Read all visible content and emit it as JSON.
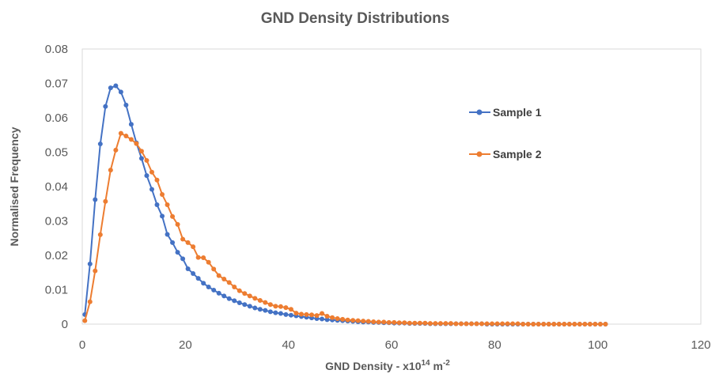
{
  "chart_data": {
    "type": "line",
    "title": "GND Density Distributions",
    "xlabel": "GND Density - x10",
    "xlabel_sup": "14",
    "xlabel_unit": " m",
    "xlabel_unit_sup": "-2",
    "ylabel": "Normalised Frequency",
    "xlim": [
      0,
      120
    ],
    "ylim": [
      0,
      0.08
    ],
    "x_ticks": [
      "0",
      "20",
      "40",
      "60",
      "80",
      "100",
      "120"
    ],
    "y_ticks": [
      "0",
      "0.01",
      "0.02",
      "0.03",
      "0.04",
      "0.05",
      "0.06",
      "0.07",
      "0.08"
    ],
    "grid": false,
    "legend_position": "right",
    "series": [
      {
        "name": "Sample 1",
        "color": "#4472C4",
        "x": [
          0.5,
          1.5,
          2.5,
          3.5,
          4.5,
          5.5,
          6.5,
          7.5,
          8.5,
          9.5,
          10.5,
          11.5,
          12.5,
          13.5,
          14.5,
          15.5,
          16.5,
          17.5,
          18.5,
          19.5,
          20.5,
          21.5,
          22.5,
          23.5,
          24.5,
          25.5,
          26.5,
          27.5,
          28.5,
          29.5,
          30.5,
          31.5,
          32.5,
          33.5,
          34.5,
          35.5,
          36.5,
          37.5,
          38.5,
          39.5,
          40.5,
          41.5,
          42.5,
          43.5,
          44.5,
          45.5,
          46.5,
          47.5,
          48.5,
          49.5,
          50.5,
          51.5,
          52.5,
          53.5,
          54.5,
          55.5,
          56.5,
          57.5,
          58.5,
          59.5,
          60.5,
          61.5,
          62.5,
          63.5,
          64.5,
          65.5,
          66.5,
          67.5,
          68.5,
          69.5,
          70.5,
          71.5,
          72.5,
          73.5,
          74.5,
          75.5,
          76.5,
          77.5,
          78.5,
          79.5,
          80.5,
          81.5,
          82.5,
          83.5,
          84.5,
          85.5,
          86.5,
          87.5,
          88.5,
          89.5,
          90.5,
          91.5,
          92.5,
          93.5,
          94.5,
          95.5,
          96.5,
          97.5,
          98.5,
          99.5,
          100.5,
          101.5
        ],
        "y": [
          0.0028,
          0.0175,
          0.0362,
          0.0524,
          0.0633,
          0.0687,
          0.0693,
          0.0675,
          0.0637,
          0.0581,
          0.0527,
          0.0482,
          0.0432,
          0.0392,
          0.0347,
          0.0314,
          0.0261,
          0.0237,
          0.0209,
          0.019,
          0.0161,
          0.0147,
          0.0133,
          0.0119,
          0.0108,
          0.0099,
          0.009,
          0.0082,
          0.0074,
          0.0068,
          0.0062,
          0.0057,
          0.0052,
          0.0047,
          0.0043,
          0.004,
          0.0036,
          0.0033,
          0.0031,
          0.0028,
          0.0026,
          0.0024,
          0.0022,
          0.002,
          0.0018,
          0.0016,
          0.0015,
          0.0013,
          0.0012,
          0.0011,
          0.001,
          0.0009,
          0.0008,
          0.0007,
          0.0006,
          0.0006,
          0.0005,
          0.0005,
          0.0004,
          0.0004,
          0.0003,
          0.0003,
          0.0003,
          0.0002,
          0.0002,
          0.0002,
          0.0002,
          0.0001,
          0.0001,
          0.0001,
          0.0001,
          0.0001,
          0.0001,
          0.0001,
          0.0001,
          0.0001,
          0.0001,
          0.0001,
          0,
          0,
          0,
          0,
          0,
          0,
          0,
          0,
          0,
          0,
          0,
          0,
          0,
          0,
          0,
          0,
          0,
          0,
          0,
          0,
          0,
          0,
          0,
          0
        ]
      },
      {
        "name": "Sample 2",
        "color": "#ED7D31",
        "x": [
          0.5,
          1.5,
          2.5,
          3.5,
          4.5,
          5.5,
          6.5,
          7.5,
          8.5,
          9.5,
          10.5,
          11.5,
          12.5,
          13.5,
          14.5,
          15.5,
          16.5,
          17.5,
          18.5,
          19.5,
          20.5,
          21.5,
          22.5,
          23.5,
          24.5,
          25.5,
          26.5,
          27.5,
          28.5,
          29.5,
          30.5,
          31.5,
          32.5,
          33.5,
          34.5,
          35.5,
          36.5,
          37.5,
          38.5,
          39.5,
          40.5,
          41.5,
          42.5,
          43.5,
          44.5,
          45.5,
          46.5,
          47.5,
          48.5,
          49.5,
          50.5,
          51.5,
          52.5,
          53.5,
          54.5,
          55.5,
          56.5,
          57.5,
          58.5,
          59.5,
          60.5,
          61.5,
          62.5,
          63.5,
          64.5,
          65.5,
          66.5,
          67.5,
          68.5,
          69.5,
          70.5,
          71.5,
          72.5,
          73.5,
          74.5,
          75.5,
          76.5,
          77.5,
          78.5,
          79.5,
          80.5,
          81.5,
          82.5,
          83.5,
          84.5,
          85.5,
          86.5,
          87.5,
          88.5,
          89.5,
          90.5,
          91.5,
          92.5,
          93.5,
          94.5,
          95.5,
          96.5,
          97.5,
          98.5,
          99.5,
          100.5,
          101.5
        ],
        "y": [
          0.001,
          0.0065,
          0.0155,
          0.026,
          0.0357,
          0.0448,
          0.0506,
          0.0555,
          0.0547,
          0.0537,
          0.0525,
          0.0503,
          0.0476,
          0.0442,
          0.0419,
          0.0377,
          0.0347,
          0.0313,
          0.029,
          0.0247,
          0.0237,
          0.0225,
          0.0194,
          0.0193,
          0.018,
          0.016,
          0.0141,
          0.0131,
          0.0121,
          0.0108,
          0.0097,
          0.0089,
          0.0082,
          0.0075,
          0.0069,
          0.0063,
          0.0057,
          0.0052,
          0.0051,
          0.0048,
          0.0043,
          0.0032,
          0.0029,
          0.0028,
          0.0027,
          0.0025,
          0.0031,
          0.0023,
          0.0019,
          0.0016,
          0.0014,
          0.0012,
          0.0011,
          0.001,
          0.0009,
          0.0008,
          0.0007,
          0.0006,
          0.0006,
          0.0005,
          0.0005,
          0.0004,
          0.0004,
          0.0003,
          0.0003,
          0.0003,
          0.0003,
          0.0002,
          0.0002,
          0.0002,
          0.0002,
          0.0002,
          0.0001,
          0.0001,
          0.0001,
          0.0001,
          0.0001,
          0.0001,
          0.0001,
          0.0001,
          0.0001,
          0.0001,
          0.0001,
          0.0001,
          0.0001,
          0,
          0,
          0,
          0,
          0,
          0,
          0,
          0,
          0,
          0,
          0,
          0,
          0,
          0,
          0,
          0,
          0
        ]
      }
    ]
  }
}
